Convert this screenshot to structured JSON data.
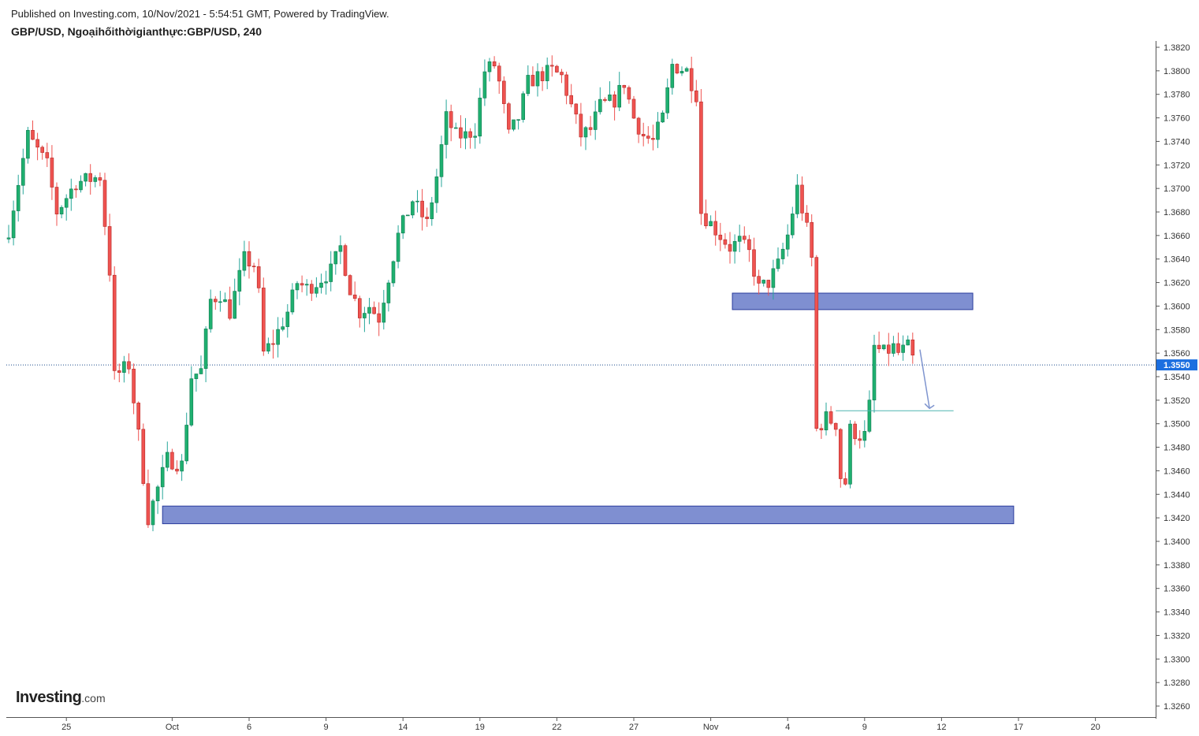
{
  "header": {
    "published": "Published on Investing.com, 10/Nov/2021 - 5:54:51 GMT, Powered by TradingView.",
    "symbol": "GBP/USD, Ngoạihốithờigianthực:GBP/USD, 240"
  },
  "logo": {
    "brand": "Investing",
    "domain": ".com"
  },
  "colors": {
    "up": "#26a69a",
    "up_body": "#1fb070",
    "down": "#ef5350",
    "zone_fill": "#7f8fd1",
    "zone_stroke": "#2a3c9c",
    "arrow": "#7f95cf",
    "line": "#4fb6b0"
  },
  "chart_data": {
    "type": "candlestick",
    "title": "GBP/USD, Ngoạihốithờigianthực:GBP/USD, 240",
    "ylim": [
      1.3252,
      1.3828
    ],
    "y_ticks": [
      "1.3260",
      "1.3280",
      "1.3300",
      "1.3320",
      "1.3340",
      "1.3360",
      "1.3380",
      "1.3400",
      "1.3420",
      "1.3440",
      "1.3460",
      "1.3480",
      "1.3500",
      "1.3520",
      "1.3540",
      "1.3560",
      "1.3580",
      "1.3600",
      "1.3620",
      "1.3640",
      "1.3660",
      "1.3680",
      "1.3700",
      "1.3720",
      "1.3740",
      "1.3760",
      "1.3780",
      "1.3800",
      "1.3820"
    ],
    "x_ticks": [
      {
        "label": "25",
        "bar": 12
      },
      {
        "label": "Oct",
        "bar": 34
      },
      {
        "label": "6",
        "bar": 50
      },
      {
        "label": "9",
        "bar": 66
      },
      {
        "label": "14",
        "bar": 82
      },
      {
        "label": "19",
        "bar": 98
      },
      {
        "label": "22",
        "bar": 114
      },
      {
        "label": "27",
        "bar": 130
      },
      {
        "label": "Nov",
        "bar": 146
      },
      {
        "label": "4",
        "bar": 162
      },
      {
        "label": "9",
        "bar": 178
      },
      {
        "label": "12",
        "bar": 194
      },
      {
        "label": "17",
        "bar": 210
      },
      {
        "label": "20",
        "bar": 226
      }
    ],
    "last_price": "1.3550",
    "waypoints": [
      [
        0,
        1.3665
      ],
      [
        4,
        1.3745
      ],
      [
        8,
        1.372
      ],
      [
        10,
        1.368
      ],
      [
        14,
        1.3705
      ],
      [
        19,
        1.371
      ],
      [
        21,
        1.363
      ],
      [
        22,
        1.354
      ],
      [
        25,
        1.355
      ],
      [
        27,
        1.349
      ],
      [
        29,
        1.342
      ],
      [
        31,
        1.3445
      ],
      [
        33,
        1.347
      ],
      [
        36,
        1.3465
      ],
      [
        38,
        1.354
      ],
      [
        40,
        1.3545
      ],
      [
        42,
        1.3605
      ],
      [
        44,
        1.361
      ],
      [
        46,
        1.3595
      ],
      [
        49,
        1.364
      ],
      [
        51,
        1.3635
      ],
      [
        52,
        1.361
      ],
      [
        53,
        1.356
      ],
      [
        55,
        1.357
      ],
      [
        58,
        1.3595
      ],
      [
        60,
        1.362
      ],
      [
        62,
        1.3615
      ],
      [
        64,
        1.362
      ],
      [
        67,
        1.363
      ],
      [
        69,
        1.365
      ],
      [
        71,
        1.3615
      ],
      [
        73,
        1.3595
      ],
      [
        75,
        1.36
      ],
      [
        77,
        1.359
      ],
      [
        79,
        1.3625
      ],
      [
        81,
        1.366
      ],
      [
        84,
        1.369
      ],
      [
        87,
        1.367
      ],
      [
        89,
        1.371
      ],
      [
        91,
        1.376
      ],
      [
        93,
        1.3745
      ],
      [
        95,
        1.3745
      ],
      [
        97,
        1.375
      ],
      [
        99,
        1.38
      ],
      [
        101,
        1.3805
      ],
      [
        102,
        1.379
      ],
      [
        104,
        1.3745
      ],
      [
        106,
        1.376
      ],
      [
        108,
        1.379
      ],
      [
        110,
        1.3795
      ],
      [
        113,
        1.38
      ],
      [
        115,
        1.3795
      ],
      [
        117,
        1.377
      ],
      [
        119,
        1.3745
      ],
      [
        121,
        1.375
      ],
      [
        123,
        1.377
      ],
      [
        126,
        1.3775
      ],
      [
        128,
        1.379
      ],
      [
        130,
        1.376
      ],
      [
        132,
        1.3745
      ],
      [
        134,
        1.374
      ],
      [
        136,
        1.376
      ],
      [
        138,
        1.3805
      ],
      [
        141,
        1.38
      ],
      [
        143,
        1.378
      ],
      [
        144,
        1.368
      ],
      [
        147,
        1.3665
      ],
      [
        150,
        1.365
      ],
      [
        152,
        1.3655
      ],
      [
        154,
        1.3645
      ],
      [
        156,
        1.3615
      ],
      [
        158,
        1.362
      ],
      [
        160,
        1.3635
      ],
      [
        162,
        1.366
      ],
      [
        164,
        1.37
      ],
      [
        166,
        1.3665
      ],
      [
        167,
        1.364
      ],
      [
        168,
        1.3495
      ],
      [
        170,
        1.3505
      ],
      [
        172,
        1.35
      ],
      [
        173,
        1.3455
      ],
      [
        174,
        1.345
      ],
      [
        175,
        1.3495
      ],
      [
        177,
        1.349
      ],
      [
        178,
        1.349
      ],
      [
        179,
        1.3515
      ],
      [
        180,
        1.3565
      ],
      [
        182,
        1.356
      ],
      [
        184,
        1.3565
      ],
      [
        185,
        1.356
      ],
      [
        187,
        1.3565
      ],
      [
        188,
        1.3555
      ]
    ],
    "zones": [
      {
        "bar_start": 32.0,
        "bar_end": 209.0,
        "low": 1.3415,
        "high": 1.343
      },
      {
        "bar_start": 150.5,
        "bar_end": 200.5,
        "low": 1.3597,
        "high": 1.3611
      }
    ],
    "target_line": {
      "bar_start": 172.0,
      "bar_end": 196.5,
      "price": 1.3511
    },
    "arrow": {
      "bar_start": 189.5,
      "bar_end": 191.5,
      "price_start": 1.3563,
      "price_end": 1.3513
    }
  }
}
